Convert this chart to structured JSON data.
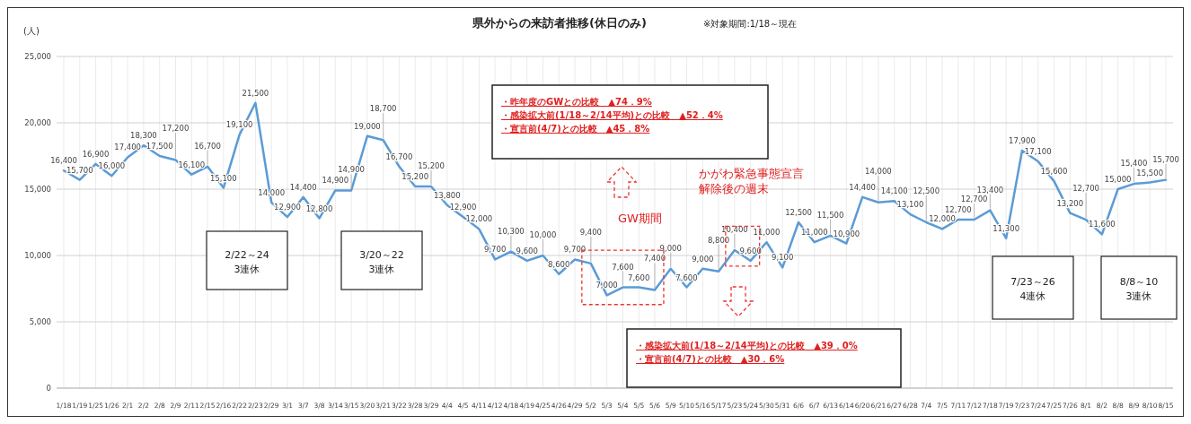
{
  "chart_data": {
    "type": "line",
    "title": "県外からの来訪者推移(休日のみ)",
    "subtitle": "※対象期間:1/18～現在",
    "ylabel": "(人)",
    "categories": [
      "1/18",
      "1/19",
      "1/25",
      "1/26",
      "2/1",
      "2/2",
      "2/8",
      "2/9",
      "2/11",
      "2/15",
      "2/16",
      "2/22",
      "2/23",
      "2/29",
      "3/1",
      "3/7",
      "3/8",
      "3/14",
      "3/15",
      "3/20",
      "3/21",
      "3/22",
      "3/28",
      "3/29",
      "4/4",
      "4/5",
      "4/11",
      "4/12",
      "4/18",
      "4/19",
      "4/25",
      "4/26",
      "4/29",
      "5/2",
      "5/3",
      "5/4",
      "5/5",
      "5/6",
      "5/9",
      "5/10",
      "5/16",
      "5/17",
      "5/23",
      "5/24",
      "5/30",
      "5/31",
      "6/6",
      "6/7",
      "6/13",
      "6/14",
      "6/20",
      "6/21",
      "6/27",
      "6/28",
      "7/4",
      "7/5",
      "7/11",
      "7/12",
      "7/18",
      "7/19",
      "7/23",
      "7/24",
      "7/25",
      "7/26",
      "8/1",
      "8/2",
      "8/8",
      "8/9",
      "8/10",
      "8/15"
    ],
    "series": [
      {
        "color": "#5b9bd5",
        "values": [
          16400,
          15700,
          16900,
          16000,
          17400,
          18300,
          17500,
          17200,
          16100,
          16700,
          15100,
          19100,
          21500,
          14000,
          12900,
          14400,
          12800,
          14900,
          14900,
          19000,
          18700,
          16700,
          15200,
          15200,
          13800,
          12900,
          12000,
          9700,
          10300,
          9600,
          10000,
          8600,
          9700,
          9400,
          7000,
          7600,
          7600,
          7400,
          9000,
          7600,
          9000,
          8800,
          10400,
          9600,
          11000,
          9100,
          12500,
          11000,
          11500,
          10900,
          14400,
          14000,
          14100,
          13100,
          12500,
          12000,
          12700,
          12700,
          13400,
          11300,
          17900,
          17100,
          15600,
          13200,
          12700,
          11600,
          15000,
          15400,
          15500,
          15700
        ],
        "value_labels": [
          "16,400",
          "15,700",
          "16,900",
          "16,000",
          "17,400",
          "18,300",
          "17,500",
          "17,200",
          "16,100",
          "16,700",
          "15,100",
          "19,100",
          "21,500",
          "14,000",
          "12,900",
          "14,400",
          "12,800",
          "14,900",
          "14,900",
          "19,000",
          "18,700",
          "16,700",
          "15,200",
          "15,200",
          "13,800",
          "12,900",
          "12,000",
          "9,700",
          "10,300",
          "9,600",
          "10,000",
          "8,600",
          "9,700",
          "9,400",
          "7,000",
          "7,600",
          "7,600",
          "7,400",
          "9,000",
          "7,600",
          "9,000",
          "8,800",
          "10,400",
          "9,600",
          "11,000",
          "9,100",
          "12,500",
          "11,000",
          "11,500",
          "10,900",
          "14,400",
          "14,000",
          "14,100",
          "13,100",
          "12,500",
          "12,000",
          "12,700",
          "12,700",
          "13,400",
          "11,300",
          "17,900",
          "17,100",
          "15,600",
          "13,200",
          "12,700",
          "11,600",
          "15,000",
          "15,400",
          "15,500",
          "15,700"
        ]
      }
    ],
    "ylim": [
      0,
      25000
    ],
    "yticks": [
      0,
      {
        "value": 5000,
        "label": "5,000"
      },
      {
        "value": 10000,
        "label": "10,000"
      },
      {
        "value": 15000,
        "label": "15,000"
      },
      {
        "value": 20000,
        "label": "20,000"
      },
      {
        "value": 25000,
        "label": "25,000"
      }
    ],
    "grid": true,
    "marker": "none",
    "line_style": "solid",
    "annotations": [
      "2/22～24\n3連休",
      "3/20～22\n3連休",
      "7/23～26\n4連休",
      "8/8～10\n3連休",
      "・昨年度のGWとの比較　▲74．9%\n・感染拡大前(1/18～2/14平均)との比較　▲52．4%\n・宣言前(4/7)との比較　▲45．8%",
      "GW期間",
      "かがわ緊急事態宣言",
      "解除後の週末",
      "・感染拡大前(1/18～2/14平均)との比較　▲39．0%\n・宣言前(4/7)との比較　▲30．6%"
    ]
  }
}
